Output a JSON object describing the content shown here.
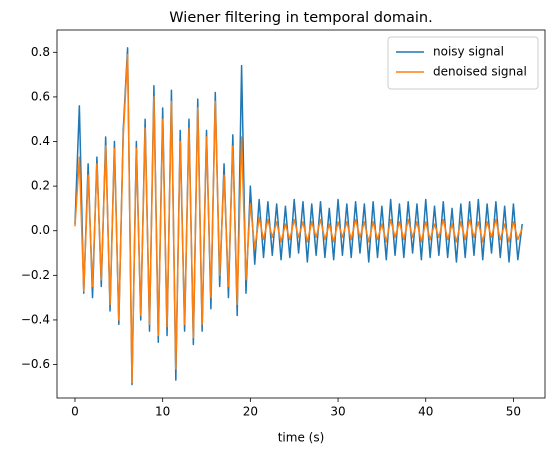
{
  "chart_data": {
    "type": "line",
    "title": "Wiener filtering in temporal domain.",
    "x_label": "time (s)",
    "x": [
      0,
      0.5,
      1,
      1.5,
      2,
      2.5,
      3,
      3.5,
      4,
      4.5,
      5,
      5.5,
      6,
      6.5,
      7,
      7.5,
      8,
      8.5,
      9,
      9.5,
      10,
      10.5,
      11,
      11.5,
      12,
      12.5,
      13,
      13.5,
      14,
      14.5,
      15,
      15.5,
      16,
      16.5,
      17,
      17.5,
      18,
      18.5,
      19,
      19.5,
      20,
      20.5,
      21,
      21.5,
      22,
      22.5,
      23,
      23.5,
      24,
      24.5,
      25,
      25.5,
      26,
      26.5,
      27,
      27.5,
      28,
      28.5,
      29,
      29.5,
      30,
      30.5,
      31,
      31.5,
      32,
      32.5,
      33,
      33.5,
      34,
      34.5,
      35,
      35.5,
      36,
      36.5,
      37,
      37.5,
      38,
      38.5,
      39,
      39.5,
      40,
      40.5,
      41,
      41.5,
      42,
      42.5,
      43,
      43.5,
      44,
      44.5,
      45,
      45.5,
      46,
      46.5,
      47,
      47.5,
      48,
      48.5,
      49,
      49.5,
      50,
      50.5,
      51
    ],
    "series": [
      {
        "name": "noisy signal",
        "color": "#1f77b4",
        "values": [
          0.03,
          0.56,
          -0.28,
          0.3,
          -0.3,
          0.33,
          -0.25,
          0.42,
          -0.36,
          0.4,
          -0.42,
          0.45,
          0.82,
          -0.69,
          0.4,
          -0.4,
          0.5,
          -0.45,
          0.65,
          -0.5,
          0.55,
          -0.47,
          0.63,
          -0.67,
          0.45,
          -0.45,
          0.5,
          -0.51,
          0.59,
          -0.45,
          0.45,
          -0.35,
          0.62,
          -0.25,
          0.3,
          -0.3,
          0.43,
          -0.38,
          0.74,
          -0.28,
          0.2,
          -0.15,
          0.14,
          -0.12,
          0.13,
          -0.11,
          0.12,
          -0.13,
          0.11,
          -0.12,
          0.14,
          -0.1,
          0.13,
          -0.14,
          0.12,
          -0.11,
          0.13,
          -0.12,
          0.1,
          -0.13,
          0.14,
          -0.11,
          0.12,
          -0.12,
          0.13,
          -0.1,
          0.12,
          -0.14,
          0.13,
          -0.12,
          0.11,
          -0.13,
          0.14,
          -0.11,
          0.12,
          -0.12,
          0.13,
          -0.1,
          0.12,
          -0.13,
          0.14,
          -0.12,
          0.11,
          -0.11,
          0.13,
          -0.12,
          0.1,
          -0.14,
          0.12,
          -0.12,
          0.13,
          -0.11,
          0.14,
          -0.13,
          0.12,
          -0.1,
          0.13,
          -0.12,
          0.11,
          -0.14,
          0.12,
          -0.13,
          0.03
        ]
      },
      {
        "name": "denoised signal",
        "color": "#ff7f0e",
        "values": [
          0.02,
          0.33,
          -0.27,
          0.25,
          -0.25,
          0.3,
          -0.22,
          0.38,
          -0.33,
          0.37,
          -0.4,
          0.42,
          0.79,
          -0.68,
          0.37,
          -0.38,
          0.46,
          -0.42,
          0.6,
          -0.47,
          0.5,
          -0.43,
          0.58,
          -0.62,
          0.4,
          -0.42,
          0.46,
          -0.48,
          0.55,
          -0.42,
          0.42,
          -0.3,
          0.58,
          -0.2,
          0.25,
          -0.25,
          0.38,
          -0.33,
          0.42,
          -0.22,
          0.12,
          -0.08,
          0.06,
          -0.04,
          0.05,
          -0.03,
          0.04,
          -0.05,
          0.03,
          -0.04,
          0.05,
          -0.03,
          0.04,
          -0.05,
          0.04,
          -0.03,
          0.05,
          -0.04,
          0.03,
          -0.05,
          0.04,
          -0.03,
          0.04,
          -0.04,
          0.05,
          -0.03,
          0.04,
          -0.05,
          0.04,
          -0.04,
          0.03,
          -0.05,
          0.05,
          -0.03,
          0.04,
          -0.04,
          0.05,
          -0.03,
          0.04,
          -0.05,
          0.04,
          -0.04,
          0.03,
          -0.03,
          0.05,
          -0.04,
          0.03,
          -0.05,
          0.04,
          -0.04,
          0.05,
          -0.03,
          0.04,
          -0.05,
          0.04,
          -0.03,
          0.05,
          -0.04,
          0.03,
          -0.05,
          0.04,
          -0.04,
          0.01
        ]
      }
    ],
    "xlim": [
      -2.05,
      53.6
    ],
    "xticks": [
      0,
      10,
      20,
      30,
      40,
      50
    ],
    "ylim": [
      -0.75,
      0.9
    ],
    "yticks": [
      {
        "value": -0.6,
        "label": "−0.6"
      },
      {
        "value": -0.4,
        "label": "−0.4"
      },
      {
        "value": -0.2,
        "label": "−0.2"
      },
      {
        "value": 0,
        "label": "0.0"
      },
      0.2,
      0.4,
      0.6,
      0.8
    ],
    "legend": "upper right"
  }
}
